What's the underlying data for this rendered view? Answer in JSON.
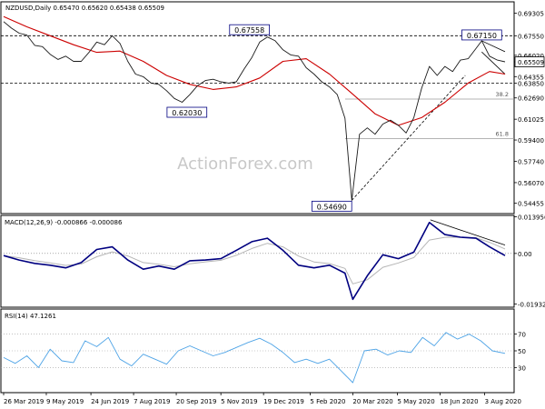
{
  "chart_data": [
    {
      "type": "line",
      "panel": "price",
      "title": "NZDUSD,Daily  0.65470 0.65620 0.65438 0.65509",
      "ylim": [
        0.5365,
        0.702
      ],
      "price_axis_labels": [
        "0.69305",
        "0.67550",
        "0.66020",
        "0.65509",
        "0.64355",
        "0.63850",
        "0.62690",
        "0.61025",
        "0.59400",
        "0.57740",
        "0.56070",
        "0.54455"
      ],
      "price_axis_values": [
        0.69305,
        0.6755,
        0.6602,
        0.65509,
        0.64355,
        0.6385,
        0.6269,
        0.61025,
        0.594,
        0.5774,
        0.5607,
        0.54455
      ],
      "current_price_tag": "0.65509",
      "annotations": [
        {
          "text": "0.67558",
          "x": "2019-12-12",
          "y": 0.67558,
          "kind": "peak"
        },
        {
          "text": "0.62030",
          "x": "2019-10-01",
          "y": 0.6203,
          "kind": "trough"
        },
        {
          "text": "0.54690",
          "x": "2020-03-19",
          "y": 0.5469,
          "kind": "trough"
        },
        {
          "text": "0.67150",
          "x": "2020-07-31",
          "y": 0.6715,
          "kind": "peak"
        },
        {
          "text": "38.2",
          "y": 0.626
        },
        {
          "text": "61.8",
          "y": 0.5952
        }
      ],
      "horizontal_levels": [
        {
          "y": 0.6755,
          "style": "dashed"
        },
        {
          "y": 0.6385,
          "style": "dashed"
        },
        {
          "y": 0.626,
          "label": "38.2"
        },
        {
          "y": 0.5952,
          "label": "61.8"
        }
      ],
      "trendlines": [
        {
          "from": {
            "x": "2020-03-19",
            "y": 0.5469
          },
          "to": {
            "x": "2020-07-14",
            "y": 0.6445
          },
          "style": "dashed"
        },
        {
          "from": {
            "x": "2020-07-31",
            "y": 0.6715
          },
          "to": {
            "x": "2020-08-24",
            "y": 0.663
          }
        },
        {
          "from": {
            "x": "2020-07-31",
            "y": 0.6628
          },
          "to": {
            "x": "2020-08-24",
            "y": 0.6455
          }
        }
      ],
      "series": [
        {
          "name": "",
          "color": "#1a1a1a",
          "x": [
            "2019-03-26",
            "2019-04-03",
            "2019-04-11",
            "2019-04-19",
            "2019-04-27",
            "2019-05-05",
            "2019-05-13",
            "2019-05-21",
            "2019-05-29",
            "2019-06-06",
            "2019-06-14",
            "2019-06-22",
            "2019-06-30",
            "2019-07-08",
            "2019-07-16",
            "2019-07-24",
            "2019-08-01",
            "2019-08-09",
            "2019-08-17",
            "2019-08-25",
            "2019-09-02",
            "2019-09-10",
            "2019-09-18",
            "2019-09-26",
            "2019-10-04",
            "2019-10-12",
            "2019-10-20",
            "2019-10-28",
            "2019-11-05",
            "2019-11-13",
            "2019-11-21",
            "2019-11-29",
            "2019-12-07",
            "2019-12-15",
            "2019-12-23",
            "2019-12-31",
            "2020-01-08",
            "2020-01-16",
            "2020-01-24",
            "2020-02-01",
            "2020-02-09",
            "2020-02-17",
            "2020-02-25",
            "2020-03-04",
            "2020-03-12",
            "2020-03-19",
            "2020-03-27",
            "2020-04-04",
            "2020-04-12",
            "2020-04-20",
            "2020-04-28",
            "2020-05-06",
            "2020-05-14",
            "2020-05-22",
            "2020-05-30",
            "2020-06-07",
            "2020-06-15",
            "2020-06-23",
            "2020-07-01",
            "2020-07-09",
            "2020-07-17",
            "2020-07-25",
            "2020-07-31",
            "2020-08-08",
            "2020-08-16",
            "2020-08-24"
          ],
          "y": [
            0.6865,
            0.6815,
            0.6775,
            0.676,
            0.668,
            0.667,
            0.661,
            0.657,
            0.6595,
            0.6555,
            0.6555,
            0.6625,
            0.6705,
            0.6685,
            0.6755,
            0.6695,
            0.6555,
            0.6455,
            0.6435,
            0.6385,
            0.6375,
            0.6325,
            0.6265,
            0.6235,
            0.6295,
            0.6365,
            0.6405,
            0.6415,
            0.6395,
            0.6385,
            0.6395,
            0.6495,
            0.6585,
            0.6705,
            0.6745,
            0.6715,
            0.6645,
            0.6605,
            0.6595,
            0.6505,
            0.6455,
            0.6395,
            0.6355,
            0.6295,
            0.611,
            0.5469,
            0.5985,
            0.6035,
            0.5985,
            0.6065,
            0.6095,
            0.6055,
            0.5995,
            0.6115,
            0.6345,
            0.6515,
            0.6445,
            0.6515,
            0.6475,
            0.6565,
            0.6575,
            0.6655,
            0.6715,
            0.6595,
            0.6565,
            0.6551
          ]
        },
        {
          "name": "",
          "color": "#cc0000",
          "x": [
            "2019-03-26",
            "2019-04-19",
            "2019-05-13",
            "2019-06-06",
            "2019-06-30",
            "2019-07-24",
            "2019-08-17",
            "2019-09-10",
            "2019-10-04",
            "2019-10-28",
            "2019-11-21",
            "2019-12-15",
            "2020-01-08",
            "2020-02-01",
            "2020-02-25",
            "2020-03-19",
            "2020-04-12",
            "2020-05-06",
            "2020-05-30",
            "2020-06-23",
            "2020-07-17",
            "2020-08-08",
            "2020-08-24"
          ],
          "y": [
            0.6905,
            0.6825,
            0.6755,
            0.6685,
            0.6625,
            0.6635,
            0.6555,
            0.6445,
            0.6375,
            0.6335,
            0.6355,
            0.6425,
            0.6555,
            0.6575,
            0.6455,
            0.6305,
            0.6145,
            0.6055,
            0.6115,
            0.6235,
            0.6385,
            0.6475,
            0.6455
          ]
        }
      ]
    },
    {
      "type": "line",
      "panel": "macd",
      "title": "MACD(12,26,9) -0.000866 -0.000086",
      "ylim": [
        -0.0205,
        0.0145
      ],
      "axis_labels": [
        "0.013956",
        "0.00",
        "-0.019325"
      ],
      "axis_values": [
        0.013956,
        0.0,
        -0.019325
      ],
      "trendlines": [
        {
          "from": {
            "x": "2020-06-08",
            "y": 0.0128
          },
          "to": {
            "x": "2020-08-24",
            "y": 0.0032
          }
        }
      ],
      "series": [
        {
          "name": "",
          "color": "#000080",
          "x": [
            "2019-03-26",
            "2019-04-11",
            "2019-04-27",
            "2019-05-13",
            "2019-05-29",
            "2019-06-14",
            "2019-06-30",
            "2019-07-16",
            "2019-08-01",
            "2019-08-17",
            "2019-09-02",
            "2019-09-18",
            "2019-10-04",
            "2019-10-20",
            "2019-11-05",
            "2019-11-21",
            "2019-12-07",
            "2019-12-23",
            "2020-01-08",
            "2020-01-24",
            "2020-02-09",
            "2020-02-25",
            "2020-03-12",
            "2020-03-20",
            "2020-04-04",
            "2020-04-20",
            "2020-05-06",
            "2020-05-22",
            "2020-06-07",
            "2020-06-23",
            "2020-07-09",
            "2020-07-25",
            "2020-08-08",
            "2020-08-24"
          ],
          "y": [
            -0.0008,
            -0.0025,
            -0.0038,
            -0.0045,
            -0.0055,
            -0.0035,
            0.0015,
            0.0025,
            -0.0025,
            -0.006,
            -0.0048,
            -0.006,
            -0.0028,
            -0.0025,
            -0.002,
            0.0012,
            0.0045,
            0.0058,
            0.0012,
            -0.0045,
            -0.0055,
            -0.0045,
            -0.0075,
            -0.0175,
            -0.0085,
            -0.0005,
            -0.002,
            0.0005,
            0.0118,
            0.0072,
            0.0062,
            0.0058,
            0.0025,
            -0.0008
          ]
        }
      ]
    },
    {
      "type": "line",
      "panel": "rsi",
      "title": "RSI(14) 47.1261",
      "ylim": [
        0,
        100
      ],
      "axis_labels": [
        "70",
        "50",
        "30"
      ],
      "axis_values": [
        70,
        50,
        30
      ],
      "series": [
        {
          "name": "",
          "color": "#4da3e6",
          "x": [
            "2019-03-26",
            "2019-04-07",
            "2019-04-19",
            "2019-05-01",
            "2019-05-13",
            "2019-05-25",
            "2019-06-06",
            "2019-06-18",
            "2019-06-30",
            "2019-07-12",
            "2019-07-24",
            "2019-08-05",
            "2019-08-17",
            "2019-08-29",
            "2019-09-10",
            "2019-09-22",
            "2019-10-04",
            "2019-10-16",
            "2019-10-28",
            "2019-11-09",
            "2019-11-21",
            "2019-12-03",
            "2019-12-15",
            "2019-12-27",
            "2020-01-08",
            "2020-01-20",
            "2020-02-01",
            "2020-02-13",
            "2020-02-25",
            "2020-03-08",
            "2020-03-20",
            "2020-04-01",
            "2020-04-13",
            "2020-04-25",
            "2020-05-07",
            "2020-05-19",
            "2020-05-31",
            "2020-06-12",
            "2020-06-24",
            "2020-07-06",
            "2020-07-18",
            "2020-07-30",
            "2020-08-11",
            "2020-08-24"
          ],
          "y": [
            42,
            35,
            44,
            30,
            52,
            38,
            36,
            62,
            55,
            66,
            40,
            32,
            46,
            40,
            34,
            50,
            56,
            50,
            44,
            48,
            54,
            60,
            65,
            58,
            48,
            36,
            40,
            35,
            40,
            26,
            12,
            50,
            52,
            45,
            50,
            48,
            66,
            56,
            72,
            64,
            70,
            62,
            50,
            47
          ]
        }
      ]
    }
  ],
  "x_axis_labels": [
    "26 Mar 2019",
    "9 May 2019",
    "24 Jun 2019",
    "7 Aug 2019",
    "20 Sep 2019",
    "5 Nov 2019",
    "19 Dec 2019",
    "5 Feb 2020",
    "20 Mar 2020",
    "5 May 2020",
    "18 Jun 2020",
    "3 Aug 2020"
  ],
  "x_axis_values": [
    "2019-03-26",
    "2019-05-09",
    "2019-06-24",
    "2019-08-07",
    "2019-09-20",
    "2019-11-05",
    "2019-12-19",
    "2020-02-05",
    "2020-03-20",
    "2020-05-05",
    "2020-06-18",
    "2020-08-03"
  ],
  "watermark": "ActionForex.com",
  "colors": {
    "price": "#1a1a1a",
    "ma": "#cc0000",
    "macd": "#000080",
    "macd_signal": "#b5b5b5",
    "rsi": "#4da3e6",
    "label_border": "#000080",
    "axis": "#000000",
    "guide": "#9a9a9a"
  }
}
